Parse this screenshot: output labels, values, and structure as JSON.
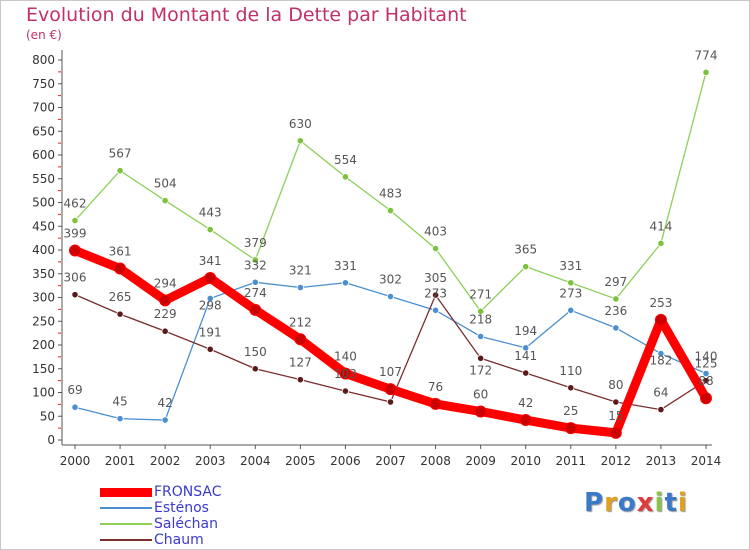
{
  "title": "Evolution du Montant de la Dette par Habitant",
  "unit": "(en €)",
  "logo": [
    "P",
    "r",
    "o",
    "x",
    "i",
    "t",
    "i"
  ],
  "logo_colors": [
    "#3a78c8",
    "#e0a020",
    "#3a78c8",
    "#e03a3a",
    "#8bc34a",
    "#3a78c8",
    "#e0a020"
  ],
  "chart_data": {
    "type": "line",
    "x": [
      "2000",
      "2001",
      "2002",
      "2003",
      "2004",
      "2005",
      "2006",
      "2007",
      "2008",
      "2009",
      "2010",
      "2011",
      "2012",
      "2013",
      "2014"
    ],
    "ylim": [
      0,
      800
    ],
    "yticks": [
      0,
      50,
      100,
      150,
      200,
      250,
      300,
      350,
      400,
      450,
      500,
      550,
      600,
      650,
      700,
      750,
      800
    ],
    "grid": false,
    "legend_position": "bottom-left",
    "series": [
      {
        "name": "FRONSAC",
        "color": "#ff0000",
        "marker": "#cc0000",
        "width": 9,
        "label_color": "#555555",
        "values": [
          399,
          361,
          294,
          341,
          274,
          212,
          140,
          107,
          76,
          60,
          42,
          25,
          15,
          253,
          88
        ],
        "labels": [
          "399",
          "361",
          "294",
          "341",
          "274",
          "212",
          "140",
          "107",
          "76",
          "60",
          "42",
          "25",
          "15",
          "253",
          "88"
        ]
      },
      {
        "name": "Esténos",
        "color": "#4a8fd0",
        "marker": "#4a8fd0",
        "width": 1.3,
        "label_color": "#555555",
        "values": [
          69,
          45,
          42,
          298,
          332,
          321,
          331,
          302,
          273,
          218,
          194,
          273,
          236,
          182,
          140
        ],
        "labels": [
          "69",
          "45",
          "42",
          "298",
          "332",
          "321",
          "331",
          "302",
          "273",
          "218",
          "194",
          "273",
          "236",
          "182",
          "140"
        ]
      },
      {
        "name": "Saléchan",
        "color": "#8ecf5a",
        "marker": "#7cc23a",
        "width": 1.3,
        "label_color": "#555555",
        "values": [
          462,
          567,
          504,
          443,
          379,
          630,
          554,
          483,
          403,
          271,
          365,
          331,
          297,
          414,
          774
        ],
        "labels": [
          "462",
          "567",
          "504",
          "443",
          "379",
          "630",
          "554",
          "483",
          "403",
          "271",
          "365",
          "331",
          "297",
          "414",
          "774"
        ]
      },
      {
        "name": "Chaum",
        "color": "#7a2e2e",
        "marker": "#5a1a1a",
        "width": 1.3,
        "label_color": "#555555",
        "values": [
          306,
          265,
          229,
          191,
          150,
          127,
          103,
          80,
          305,
          172,
          141,
          110,
          80,
          64,
          125
        ],
        "labels": [
          "306",
          "265",
          "229",
          "191",
          "150",
          "127",
          "103",
          "",
          "305",
          "172",
          "141",
          "110",
          "80",
          "64",
          "125"
        ]
      }
    ]
  }
}
